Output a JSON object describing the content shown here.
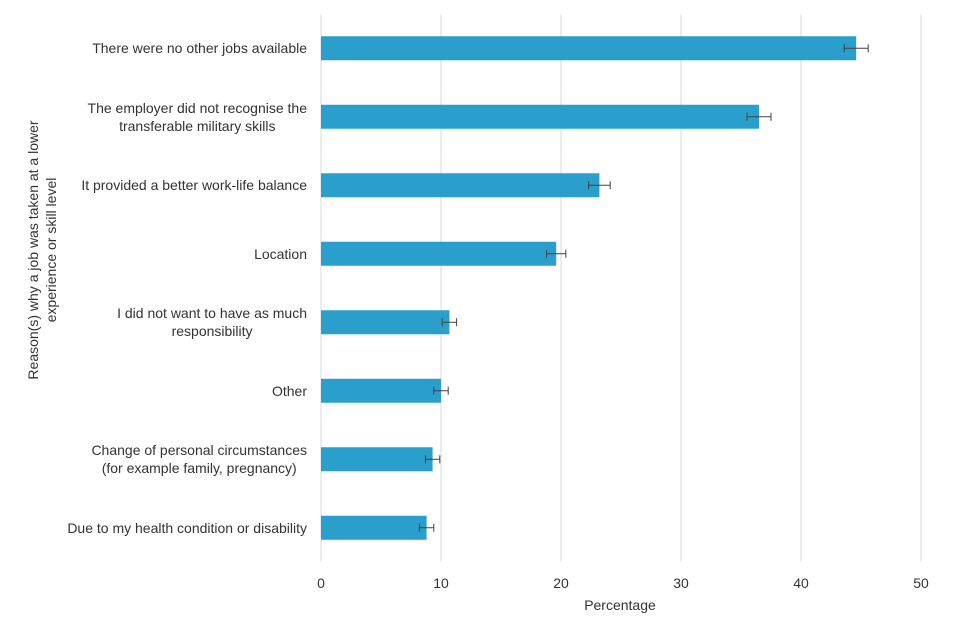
{
  "chart_data": {
    "type": "bar",
    "orientation": "horizontal",
    "title": "",
    "xlabel": "Percentage",
    "ylabel": "Reason(s) why a job was taken at a lower\nexperience or skill level",
    "xlim": [
      0,
      50
    ],
    "xticks": [
      "0",
      "10",
      "20",
      "30",
      "40",
      "50"
    ],
    "grid": true,
    "bar_color": "#2b9fcc",
    "categories": [
      "There were no other jobs available",
      "The employer did not recognise the\ntransferable military skills",
      "It provided a better work-life balance",
      "Location",
      "I did not want to have as much\nresponsibility",
      "Other",
      "Change of personal circumstances\n(for example family, pregnancy)",
      "Due to my health condition or disability"
    ],
    "values": [
      44.6,
      36.5,
      23.2,
      19.6,
      10.7,
      10.0,
      9.3,
      8.8
    ],
    "error_low": [
      43.6,
      35.5,
      22.3,
      18.8,
      10.1,
      9.4,
      8.7,
      8.2
    ],
    "error_high": [
      45.6,
      37.5,
      24.1,
      20.4,
      11.3,
      10.6,
      9.9,
      9.4
    ]
  }
}
